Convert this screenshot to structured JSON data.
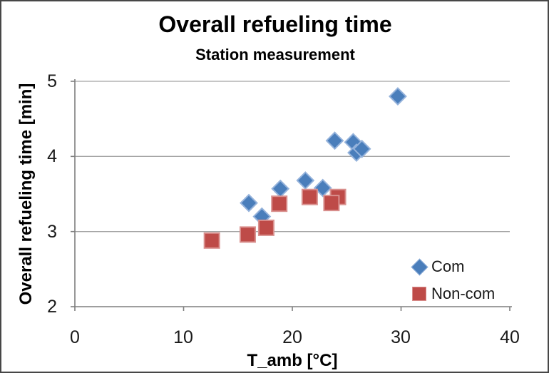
{
  "frame": {
    "border_color": "#474747",
    "background": "#ffffff"
  },
  "chart_data": {
    "type": "scatter",
    "title": "Overall refueling time",
    "subtitle": "Station measurement",
    "xlabel": "T_amb [°C]",
    "ylabel": "Overall refueling time [min]",
    "xlim": [
      0,
      40
    ],
    "ylim": [
      2,
      5
    ],
    "x_ticks": [
      0,
      10,
      20,
      30,
      40
    ],
    "y_ticks": [
      5,
      4,
      3,
      2
    ],
    "grid": "horizontal-gridlines-only",
    "legend_position": "inside-bottom-right",
    "axis_color": "#7f7f7f",
    "gridline_color": "#a3a3a3",
    "series": [
      {
        "name": "Com",
        "marker": "diamond",
        "fill": "#4A7EBB",
        "stroke": "#94B2DB",
        "points": [
          [
            16.0,
            3.38
          ],
          [
            17.2,
            3.2
          ],
          [
            18.9,
            3.57
          ],
          [
            21.2,
            3.68
          ],
          [
            22.8,
            3.58
          ],
          [
            23.9,
            4.21
          ],
          [
            25.6,
            4.19
          ],
          [
            25.9,
            4.05
          ],
          [
            26.4,
            4.1
          ],
          [
            29.7,
            4.8
          ]
        ]
      },
      {
        "name": "Non-com",
        "marker": "square",
        "fill": "#BE4B48",
        "stroke": "#D9908E",
        "points": [
          [
            12.6,
            2.88
          ],
          [
            15.9,
            2.96
          ],
          [
            17.6,
            3.05
          ],
          [
            18.8,
            3.37
          ],
          [
            21.6,
            3.46
          ],
          [
            24.2,
            3.46
          ],
          [
            23.6,
            3.38
          ]
        ]
      }
    ]
  }
}
